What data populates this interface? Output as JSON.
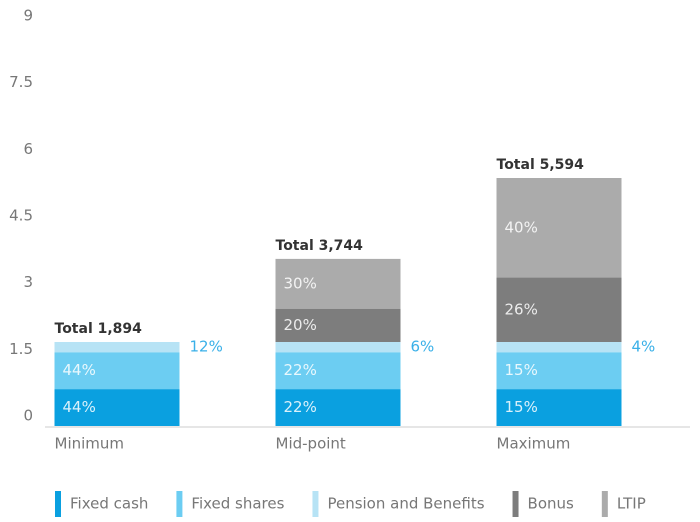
{
  "chart_data": {
    "type": "stacked_bar",
    "categories": [
      "Minimum",
      "Mid-point",
      "Maximum"
    ],
    "totals": [
      "Total 1,894",
      "Total 3,744",
      "Total 5,594"
    ],
    "series": [
      {
        "name": "Fixed cash",
        "color": "#0aa0e0",
        "values": [
          0.83,
          0.83,
          0.83
        ],
        "share_labels": [
          "44%",
          "22%",
          "15%"
        ]
      },
      {
        "name": "Fixed shares",
        "color": "#6ccdf2",
        "values": [
          0.83,
          0.83,
          0.83
        ],
        "share_labels": [
          "44%",
          "22%",
          "15%"
        ]
      },
      {
        "name": "Pension and Benefits",
        "color": "#b7e3f5",
        "values": [
          0.23,
          0.23,
          0.23
        ],
        "share_labels": [
          "12%",
          "6%",
          "4%"
        ]
      },
      {
        "name": "Bonus",
        "color": "#7d7d7d",
        "values": [
          null,
          0.75,
          1.45
        ],
        "share_labels": [
          null,
          "20%",
          "26%"
        ]
      },
      {
        "name": "LTIP",
        "color": "#ababab",
        "values": [
          null,
          1.12,
          2.24
        ],
        "share_labels": [
          null,
          "30%",
          "40%"
        ]
      }
    ],
    "ylim": [
      0,
      9
    ],
    "yticks": [
      0,
      1.5,
      3,
      4.5,
      6,
      7.5,
      9
    ],
    "grid": false,
    "legend": "bottom"
  }
}
